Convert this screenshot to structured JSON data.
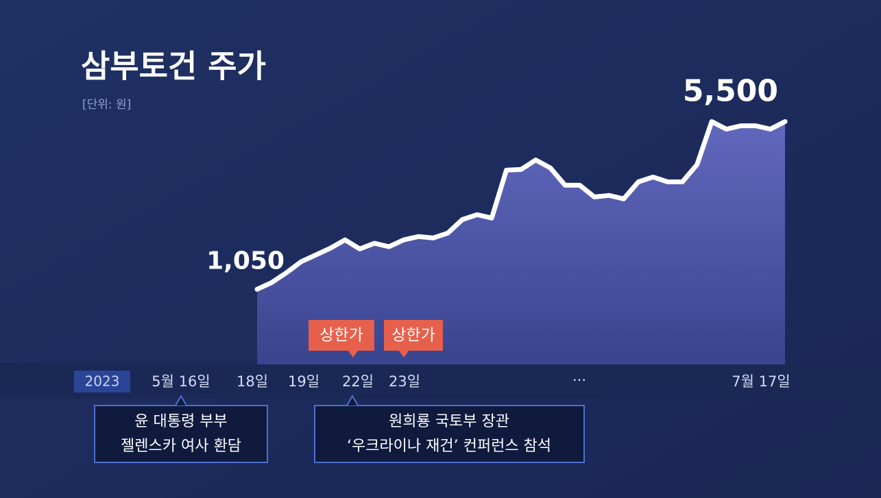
{
  "chart_data": {
    "type": "area",
    "title": "삼부토건 주가",
    "subtitle": "[단위: 원]",
    "year": "2023",
    "categories": [
      null,
      null,
      null,
      null,
      null,
      null,
      null,
      null,
      null,
      null,
      null,
      null,
      null,
      null,
      null,
      null,
      null,
      null,
      null,
      null,
      null,
      null,
      null,
      null,
      null,
      null,
      null,
      null,
      null,
      null,
      null,
      null,
      null,
      null,
      null,
      null,
      null
    ],
    "values": [
      1050,
      1230,
      1490,
      1780,
      1960,
      2140,
      2360,
      2120,
      2270,
      2180,
      2360,
      2450,
      2410,
      2540,
      2900,
      3030,
      2940,
      4210,
      4230,
      4480,
      4270,
      3810,
      3810,
      3500,
      3540,
      3450,
      3900,
      4030,
      3900,
      3900,
      4360,
      5500,
      5300,
      5390,
      5390,
      5300,
      5500
    ],
    "value_labels": [
      "1,050",
      null,
      null,
      null,
      null,
      null,
      null,
      null,
      null,
      null,
      null,
      null,
      null,
      null,
      null,
      null,
      null,
      null,
      null,
      null,
      null,
      null,
      null,
      null,
      null,
      null,
      null,
      null,
      null,
      null,
      null,
      null,
      null,
      null,
      null,
      null,
      "5,500"
    ],
    "color": "#ffffff",
    "fill_color": "#5a63b4",
    "ylim": [
      0,
      6000
    ],
    "date_labels": [
      "5월 16일",
      "18일",
      "19일",
      "22일",
      "23일",
      "···",
      "7월 17일"
    ],
    "tags": [
      "상한가",
      "상한가"
    ],
    "callouts": [
      {
        "lines": [
          "윤 대통령 부부",
          "젤렌스카 여사 환담"
        ]
      },
      {
        "lines": [
          "원희룡 국토부 장관",
          "‘우크라이나 재건’ 컨퍼런스 참석"
        ]
      }
    ]
  }
}
